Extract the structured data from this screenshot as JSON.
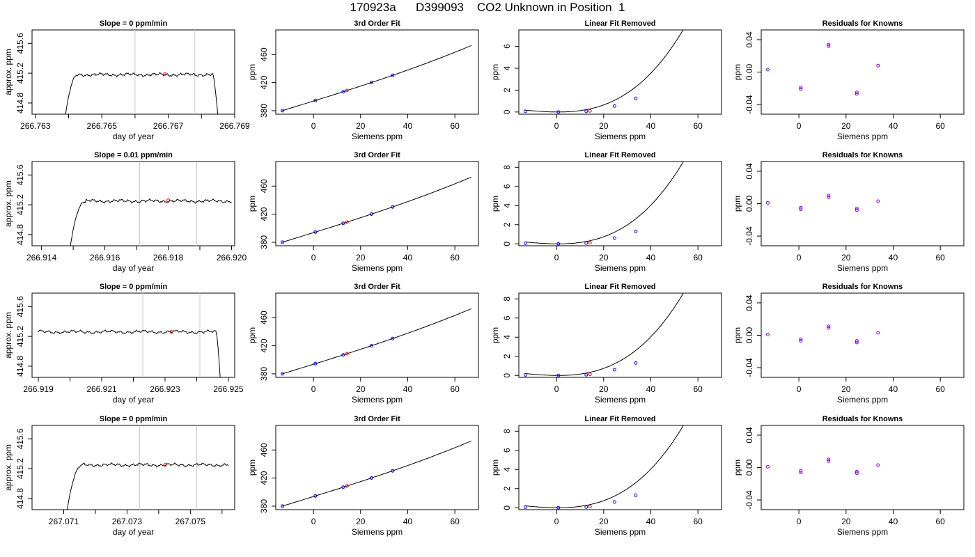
{
  "figure_title": "170923a      D399093    CO2 Unknown in Position  1",
  "colors": {
    "axis": "#000000",
    "trace": "#000000",
    "window_line": "#c8c8c8",
    "known_point": "#0000ff",
    "unknown_point": "#ff0000",
    "resid_point": "#8000ff"
  },
  "chart_data": [
    {
      "row": 1,
      "type": "line",
      "title": "Slope =  0  ppm/min",
      "xlabel": "day of year",
      "ylabel": "approx. ppm",
      "xlim": [
        266.7629,
        266.769
      ],
      "ylim": [
        414.65,
        415.78
      ],
      "xticks": [
        "266.763",
        "266.765",
        "266.767",
        "266.769"
      ],
      "xticks_minor": [
        266.764,
        266.766,
        266.768
      ],
      "yticks": [
        "414.8",
        "415.2",
        "415.6"
      ],
      "vlines": [
        266.766,
        266.7678
      ],
      "series": [
        {
          "x_start": 266.7639,
          "x_end": 266.7685,
          "rise_end": 266.7643,
          "fall_start": 266.76835,
          "start_y": 414.62,
          "plateau": 415.18,
          "end_y": 414.6
        }
      ],
      "red_point": {
        "x": 266.7669,
        "y": 415.19
      }
    },
    {
      "row": 1,
      "type": "line",
      "title": "3rd Order Fit",
      "xlabel": "Siemens ppm",
      "ylabel": "ppm",
      "xlim": [
        -16,
        70
      ],
      "ylim": [
        375,
        495
      ],
      "xticks": [
        "0",
        "20",
        "40",
        "60"
      ],
      "yticks": [
        "380",
        "420",
        "460"
      ],
      "curve": {
        "x0": -13.5,
        "x1": 67,
        "a": 393.7,
        "b": 1.04,
        "c": 0.0009,
        "d": 1.8e-05
      },
      "known_x": [
        -13.2,
        0.8,
        12.6,
        24.6,
        33.6
      ],
      "unknown_x": [
        14.2
      ]
    },
    {
      "row": 1,
      "type": "line",
      "title": "Linear Fit Removed",
      "xlabel": "Siemens ppm",
      "ylabel": "ppm",
      "xlim": [
        -16,
        70
      ],
      "ylim": [
        -0.2,
        7.5
      ],
      "xticks": [
        "0",
        "20",
        "40",
        "60"
      ],
      "yticks": [
        "0",
        "2",
        "4",
        "6"
      ],
      "curve": {
        "x0": -13.5,
        "x1": 67.5,
        "min_x": 0.8,
        "k": 2.74e-05
      },
      "known_points": [
        [
          -13.2,
          0.06
        ],
        [
          0.8,
          0.0
        ],
        [
          12.6,
          0.06
        ],
        [
          24.6,
          0.55
        ],
        [
          33.6,
          1.25
        ]
      ],
      "unknown_points": [
        [
          14.2,
          0.1
        ]
      ]
    },
    {
      "row": 1,
      "type": "scatter",
      "title": "Residuals for Knowns",
      "xlabel": "Siemens ppm",
      "ylabel": "ppm",
      "xlim": [
        -16,
        70
      ],
      "ylim": [
        -0.052,
        0.052
      ],
      "xticks": [
        "0",
        "20",
        "40",
        "60"
      ],
      "yticks": [
        "-0.04",
        "0.00",
        "0.04"
      ],
      "points": [
        [
          -13.2,
          0.003
        ],
        [
          0.8,
          -0.019
        ],
        [
          0.8,
          -0.021
        ],
        [
          12.6,
          0.034
        ],
        [
          12.6,
          0.032
        ],
        [
          24.6,
          -0.025
        ],
        [
          24.6,
          -0.027
        ],
        [
          33.6,
          0.008
        ]
      ]
    },
    {
      "row": 2,
      "type": "line",
      "title": "Slope =  0.01  ppm/min",
      "xlabel": "day of year",
      "ylabel": "approx. ppm",
      "xlim": [
        266.9137,
        266.9201
      ],
      "ylim": [
        414.65,
        415.78
      ],
      "xticks": [
        "266.914",
        "266.916",
        "266.918",
        "266.920"
      ],
      "xticks_minor": [
        266.915,
        266.917,
        266.919
      ],
      "yticks": [
        "414.8",
        "415.2",
        "415.6"
      ],
      "vlines": [
        266.9171,
        266.9189
      ],
      "series": [
        {
          "x_start": 266.9149,
          "x_end": 266.92,
          "rise_end": 266.9154,
          "fall_start": null,
          "start_y": 414.62,
          "plateau": 415.25,
          "end_y": 415.25
        }
      ],
      "red_point": {
        "x": 266.918,
        "y": 415.26
      }
    },
    {
      "row": 2,
      "type": "line",
      "title": "3rd Order Fit",
      "xlabel": "Siemens ppm",
      "ylabel": "ppm",
      "xlim": [
        -16,
        70
      ],
      "ylim": [
        375,
        495
      ],
      "xticks": [
        "0",
        "20",
        "40",
        "60"
      ],
      "yticks": [
        "380",
        "420",
        "460"
      ],
      "curve": {
        "x0": -13.5,
        "x1": 67,
        "a": 393.7,
        "b": 1.04,
        "c": 0.0009,
        "d": 1.8e-05
      },
      "known_x": [
        -13.2,
        0.8,
        12.6,
        24.6,
        33.6
      ],
      "unknown_x": [
        14.2
      ]
    },
    {
      "row": 2,
      "type": "line",
      "title": "Linear Fit Removed",
      "xlabel": "Siemens ppm",
      "ylabel": "ppm",
      "xlim": [
        -16,
        70
      ],
      "ylim": [
        -0.2,
        8.6
      ],
      "xticks": [
        "0",
        "20",
        "40",
        "60"
      ],
      "yticks": [
        "0",
        "2",
        "4",
        "6",
        "8"
      ],
      "curve": {
        "x0": -13.5,
        "x1": 67.5,
        "min_x": 0.8,
        "k": 3.12e-05
      },
      "known_points": [
        [
          -13.2,
          0.06
        ],
        [
          0.8,
          0.0
        ],
        [
          12.6,
          0.07
        ],
        [
          24.6,
          0.6
        ],
        [
          33.6,
          1.3
        ]
      ],
      "unknown_points": [
        [
          14.2,
          0.12
        ]
      ]
    },
    {
      "row": 2,
      "type": "scatter",
      "title": "Residuals for Knowns",
      "xlabel": "Siemens ppm",
      "ylabel": "ppm",
      "xlim": [
        -16,
        70
      ],
      "ylim": [
        -0.052,
        0.052
      ],
      "xticks": [
        "0",
        "20",
        "40",
        "60"
      ],
      "yticks": [
        "-0.04",
        "0.00",
        "0.04"
      ],
      "points": [
        [
          -13.2,
          0.001
        ],
        [
          0.8,
          -0.005
        ],
        [
          0.8,
          -0.007
        ],
        [
          12.6,
          0.01
        ],
        [
          12.6,
          0.008
        ],
        [
          24.6,
          -0.006
        ],
        [
          24.6,
          -0.008
        ],
        [
          33.6,
          0.003
        ]
      ]
    },
    {
      "row": 3,
      "type": "line",
      "title": "Slope =  0  ppm/min",
      "xlabel": "day of year",
      "ylabel": "approx. ppm",
      "xlim": [
        266.9188,
        266.9252
      ],
      "ylim": [
        414.65,
        415.78
      ],
      "xticks": [
        "266.919",
        "266.921",
        "266.923",
        "266.925"
      ],
      "xticks_minor": [
        266.92,
        266.922,
        266.924
      ],
      "yticks": [
        "414.8",
        "415.2",
        "415.6"
      ],
      "vlines": [
        266.9223,
        266.9241
      ],
      "series": [
        {
          "x_start": 266.919,
          "x_end": 266.92475,
          "rise_end": null,
          "fall_start": 266.92462,
          "start_y": 415.24,
          "plateau": 415.26,
          "end_y": 414.6
        }
      ],
      "red_point": {
        "x": 266.9232,
        "y": 415.26
      }
    },
    {
      "row": 3,
      "type": "line",
      "title": "3rd Order Fit",
      "xlabel": "Siemens ppm",
      "ylabel": "ppm",
      "xlim": [
        -16,
        70
      ],
      "ylim": [
        375,
        495
      ],
      "xticks": [
        "0",
        "20",
        "40",
        "60"
      ],
      "yticks": [
        "380",
        "420",
        "460"
      ],
      "curve": {
        "x0": -13.5,
        "x1": 67,
        "a": 393.7,
        "b": 1.04,
        "c": 0.0009,
        "d": 1.8e-05
      },
      "known_x": [
        -13.2,
        0.8,
        12.6,
        24.6,
        33.6
      ],
      "unknown_x": [
        14.2
      ]
    },
    {
      "row": 3,
      "type": "line",
      "title": "Linear Fit Removed",
      "xlabel": "Siemens ppm",
      "ylabel": "ppm",
      "xlim": [
        -16,
        70
      ],
      "ylim": [
        -0.2,
        8.6
      ],
      "xticks": [
        "0",
        "20",
        "40",
        "60"
      ],
      "yticks": [
        "0",
        "2",
        "4",
        "6",
        "8"
      ],
      "curve": {
        "x0": -13.5,
        "x1": 67.5,
        "min_x": 0.8,
        "k": 3.12e-05
      },
      "known_points": [
        [
          -13.2,
          0.06
        ],
        [
          0.8,
          0.0
        ],
        [
          12.6,
          0.07
        ],
        [
          24.6,
          0.6
        ],
        [
          33.6,
          1.3
        ]
      ],
      "unknown_points": [
        [
          14.2,
          0.12
        ]
      ]
    },
    {
      "row": 3,
      "type": "scatter",
      "title": "Residuals for Knowns",
      "xlabel": "Siemens ppm",
      "ylabel": "ppm",
      "xlim": [
        -16,
        70
      ],
      "ylim": [
        -0.052,
        0.052
      ],
      "xticks": [
        "0",
        "20",
        "40",
        "60"
      ],
      "yticks": [
        "-0.04",
        "0.00",
        "0.04"
      ],
      "points": [
        [
          -13.2,
          0.001
        ],
        [
          0.8,
          -0.005
        ],
        [
          0.8,
          -0.007
        ],
        [
          12.6,
          0.011
        ],
        [
          12.6,
          0.009
        ],
        [
          24.6,
          -0.007
        ],
        [
          24.6,
          -0.009
        ],
        [
          33.6,
          0.003
        ]
      ]
    },
    {
      "row": 4,
      "type": "line",
      "title": "Slope =  0  ppm/min",
      "xlabel": "day of year",
      "ylabel": "approx. ppm",
      "xlim": [
        267.07,
        267.0764
      ],
      "ylim": [
        414.65,
        415.78
      ],
      "xticks": [
        "267.071",
        "267.073",
        "267.075"
      ],
      "xticks_minor": [
        267.072,
        267.074,
        267.076
      ],
      "yticks": [
        "414.8",
        "415.2",
        "415.6"
      ],
      "vlines": [
        267.0734,
        267.0752
      ],
      "series": [
        {
          "x_start": 267.0711,
          "x_end": 267.0762,
          "rise_end": 267.0716,
          "fall_start": null,
          "start_y": 414.62,
          "plateau": 415.25,
          "end_y": 415.25
        }
      ],
      "red_point": {
        "x": 267.0742,
        "y": 415.25
      }
    },
    {
      "row": 4,
      "type": "line",
      "title": "3rd Order Fit",
      "xlabel": "Siemens ppm",
      "ylabel": "ppm",
      "xlim": [
        -16,
        70
      ],
      "ylim": [
        375,
        495
      ],
      "xticks": [
        "0",
        "20",
        "40",
        "60"
      ],
      "yticks": [
        "380",
        "420",
        "460"
      ],
      "curve": {
        "x0": -13.5,
        "x1": 67,
        "a": 393.7,
        "b": 1.04,
        "c": 0.0009,
        "d": 1.8e-05
      },
      "known_x": [
        -13.2,
        0.8,
        12.6,
        24.6,
        33.6
      ],
      "unknown_x": [
        14.2
      ]
    },
    {
      "row": 4,
      "type": "line",
      "title": "Linear Fit Removed",
      "xlabel": "Siemens ppm",
      "ylabel": "ppm",
      "xlim": [
        -16,
        70
      ],
      "ylim": [
        -0.2,
        8.6
      ],
      "xticks": [
        "0",
        "20",
        "40",
        "60"
      ],
      "yticks": [
        "0",
        "2",
        "4",
        "6",
        "8"
      ],
      "curve": {
        "x0": -13.5,
        "x1": 67.5,
        "min_x": 0.8,
        "k": 3.12e-05
      },
      "known_points": [
        [
          -13.2,
          0.06
        ],
        [
          0.8,
          0.0
        ],
        [
          12.6,
          0.07
        ],
        [
          24.6,
          0.6
        ],
        [
          33.6,
          1.3
        ]
      ],
      "unknown_points": [
        [
          14.2,
          0.12
        ]
      ]
    },
    {
      "row": 4,
      "type": "scatter",
      "title": "Residuals for Knowns",
      "xlabel": "Siemens ppm",
      "ylabel": "ppm",
      "xlim": [
        -16,
        70
      ],
      "ylim": [
        -0.052,
        0.052
      ],
      "xticks": [
        "0",
        "20",
        "40",
        "60"
      ],
      "yticks": [
        "-0.04",
        "0.00",
        "0.04"
      ],
      "points": [
        [
          -13.2,
          0.001
        ],
        [
          0.8,
          -0.004
        ],
        [
          0.8,
          -0.006
        ],
        [
          12.6,
          0.01
        ],
        [
          12.6,
          0.008
        ],
        [
          24.6,
          -0.005
        ],
        [
          24.6,
          -0.007
        ],
        [
          33.6,
          0.003
        ]
      ]
    }
  ]
}
